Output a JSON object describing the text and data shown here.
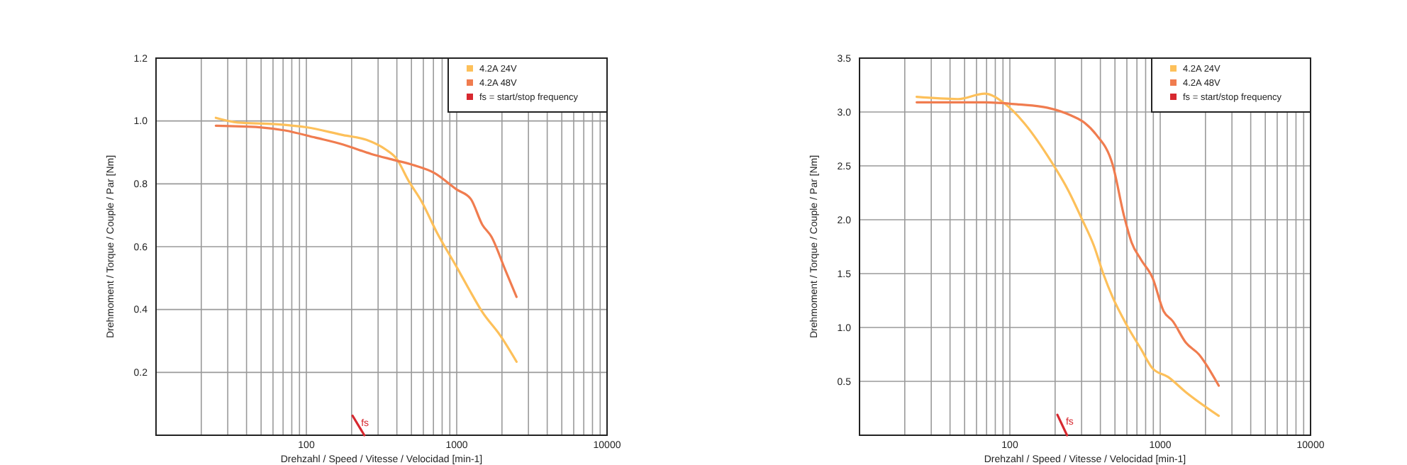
{
  "chart_data": [
    {
      "type": "line",
      "xlabel": "Drehzahl / Speed / Vitesse / Velocidad [min-1]",
      "ylabel": "Drehmoment / Torque / Couple / Par [Nm]",
      "log": "x",
      "grid": true,
      "legend": "top right",
      "xlim": [
        10,
        10000
      ],
      "ylim": [
        0,
        1.2
      ],
      "xticks": [
        {
          "value": 20,
          "label": null
        },
        {
          "value": 30,
          "label": null
        },
        {
          "value": 40,
          "label": null
        },
        {
          "value": 50,
          "label": null
        },
        {
          "value": 60,
          "label": null
        },
        {
          "value": 70,
          "label": null
        },
        {
          "value": 80,
          "label": null
        },
        {
          "value": 90,
          "label": null
        },
        100,
        {
          "value": 200,
          "label": null
        },
        {
          "value": 300,
          "label": null
        },
        {
          "value": 400,
          "label": null
        },
        {
          "value": 500,
          "label": null
        },
        {
          "value": 600,
          "label": null
        },
        {
          "value": 700,
          "label": null
        },
        {
          "value": 800,
          "label": null
        },
        {
          "value": 900,
          "label": null
        },
        1000,
        {
          "value": 2000,
          "label": null
        },
        {
          "value": 3000,
          "label": null
        },
        {
          "value": 4000,
          "label": null
        },
        {
          "value": 5000,
          "label": null
        },
        {
          "value": 6000,
          "label": null
        },
        {
          "value": 7000,
          "label": null
        },
        {
          "value": 8000,
          "label": null
        },
        {
          "value": 9000,
          "label": null
        },
        10000
      ],
      "yticks": [
        {
          "value": 0.2,
          "label": "0.2"
        },
        {
          "value": 0.4,
          "label": "0.4"
        },
        {
          "value": 0.6,
          "label": "0.6"
        },
        {
          "value": 0.8,
          "label": "0.8"
        },
        {
          "value": 1.0,
          "label": "1.0"
        },
        {
          "value": 1.2,
          "label": "1.2"
        }
      ],
      "series": [
        {
          "name": "4.2A 24V",
          "color": "#fdc05a",
          "x": [
            25,
            35,
            62,
            100,
            176,
            251,
            335,
            398,
            478,
            590,
            735,
            1000,
            1200,
            1480,
            1950,
            2500
          ],
          "values": [
            1.01,
            0.995,
            0.99,
            0.98,
            0.955,
            0.94,
            0.91,
            0.88,
            0.81,
            0.74,
            0.647,
            0.535,
            0.467,
            0.392,
            0.317,
            0.234
          ]
        },
        {
          "name": "4.2A 48V",
          "color": "#f07c4f",
          "x": [
            25,
            49,
            72,
            115,
            176,
            270,
            390,
            513,
            708,
            1000,
            1240,
            1480,
            1700,
            2100,
            2500
          ],
          "values": [
            0.985,
            0.98,
            0.97,
            0.947,
            0.925,
            0.895,
            0.875,
            0.86,
            0.835,
            0.782,
            0.752,
            0.67,
            0.632,
            0.527,
            0.44
          ]
        },
        {
          "name": "fs = start/stop frequency",
          "color": "#d7282f",
          "x": [
            203,
            243
          ],
          "values": [
            0.062,
            0
          ]
        }
      ],
      "annotations": [
        "fs"
      ]
    },
    {
      "type": "line",
      "xlabel": "Drehzahl / Speed / Vitesse / Velocidad [min-1]",
      "ylabel": "Drehmoment / Torque / Couple / Par [Nm]",
      "log": "x",
      "grid": true,
      "legend": "top right",
      "xlim": [
        10,
        10000
      ],
      "ylim": [
        0,
        3.5
      ],
      "xticks": [
        {
          "value": 20,
          "label": null
        },
        {
          "value": 30,
          "label": null
        },
        {
          "value": 40,
          "label": null
        },
        {
          "value": 50,
          "label": null
        },
        {
          "value": 60,
          "label": null
        },
        {
          "value": 70,
          "label": null
        },
        {
          "value": 80,
          "label": null
        },
        {
          "value": 90,
          "label": null
        },
        100,
        {
          "value": 200,
          "label": null
        },
        {
          "value": 300,
          "label": null
        },
        {
          "value": 400,
          "label": null
        },
        {
          "value": 500,
          "label": null
        },
        {
          "value": 600,
          "label": null
        },
        {
          "value": 700,
          "label": null
        },
        {
          "value": 800,
          "label": null
        },
        {
          "value": 900,
          "label": null
        },
        1000,
        {
          "value": 2000,
          "label": null
        },
        {
          "value": 3000,
          "label": null
        },
        {
          "value": 4000,
          "label": null
        },
        {
          "value": 5000,
          "label": null
        },
        {
          "value": 6000,
          "label": null
        },
        {
          "value": 7000,
          "label": null
        },
        {
          "value": 8000,
          "label": null
        },
        {
          "value": 9000,
          "label": null
        },
        10000
      ],
      "yticks": [
        0.5,
        {
          "value": 1.0,
          "label": "1.0"
        },
        1.5,
        {
          "value": 2.0,
          "label": "2.0"
        },
        2.5,
        {
          "value": 3.0,
          "label": "3.0"
        },
        3.5
      ],
      "series": [
        {
          "name": "4.2A 24V",
          "color": "#fdc05a",
          "x": [
            24,
            45,
            68,
            92,
            124,
            177,
            245,
            303,
            362,
            418,
            483,
            600,
            745,
            890,
            1130,
            1480,
            2450
          ],
          "values": [
            3.14,
            3.12,
            3.17,
            3.08,
            2.9,
            2.6,
            2.27,
            2.0,
            1.76,
            1.5,
            1.28,
            1.02,
            0.8,
            0.62,
            0.54,
            0.4,
            0.18
          ]
        },
        {
          "name": "4.2A 48V",
          "color": "#f07c4f",
          "x": [
            24,
            68,
            115,
            177,
            253,
            314,
            375,
            483,
            576,
            645,
            745,
            890,
            1055,
            1210,
            1480,
            1810,
            2450
          ],
          "values": [
            3.09,
            3.09,
            3.07,
            3.04,
            2.97,
            2.9,
            2.79,
            2.51,
            2.03,
            1.79,
            1.63,
            1.46,
            1.15,
            1.06,
            0.86,
            0.75,
            0.46
          ]
        },
        {
          "name": "fs = start/stop frequency",
          "color": "#d7282f",
          "x": [
            207,
            240
          ],
          "values": [
            0.19,
            0
          ]
        }
      ],
      "annotations": [
        "fs"
      ]
    }
  ]
}
